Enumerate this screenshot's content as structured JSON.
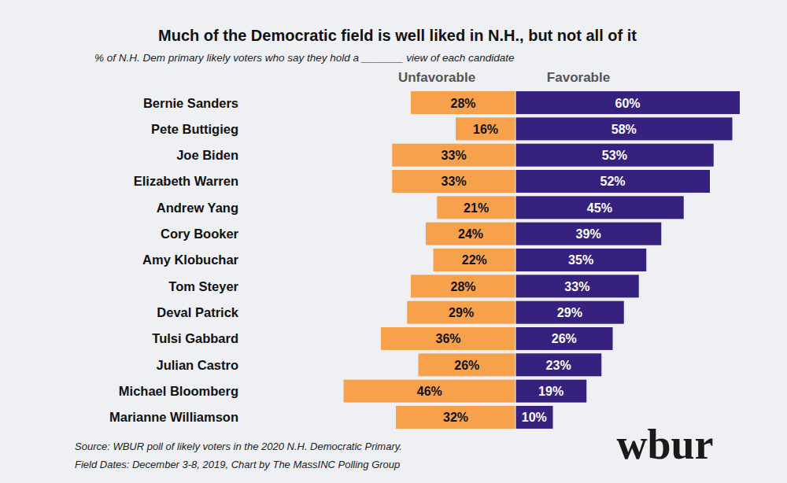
{
  "chart_data": {
    "type": "bar",
    "orientation": "horizontal",
    "title": "Much of the Democratic field is well liked in N.H., but not all of it",
    "subtitle": "% of N.H. Dem primary likely voters who say they hold a _______ view of each candidate",
    "categories": [
      "Bernie Sanders",
      "Pete Buttigieg",
      "Joe Biden",
      "Elizabeth Warren",
      "Andrew Yang",
      "Cory Booker",
      "Amy Klobuchar",
      "Tom Steyer",
      "Deval Patrick",
      "Tulsi Gabbard",
      "Julian Castro",
      "Michael Bloomberg",
      "Marianne Williamson"
    ],
    "series": [
      {
        "name": "Unfavorable",
        "color": "#f7a14c",
        "values": [
          28,
          16,
          33,
          33,
          21,
          24,
          22,
          28,
          29,
          36,
          26,
          46,
          32
        ],
        "value_labels": [
          "28%",
          "16%",
          "33%",
          "33%",
          "21%",
          "24%",
          "22%",
          "28%",
          "29%",
          "36%",
          "26%",
          "46%",
          "32%"
        ]
      },
      {
        "name": "Favorable",
        "color": "#36217f",
        "values": [
          60,
          58,
          53,
          52,
          45,
          39,
          35,
          33,
          29,
          26,
          23,
          19,
          10
        ],
        "value_labels": [
          "60%",
          "58%",
          "53%",
          "52%",
          "45%",
          "39%",
          "35%",
          "33%",
          "29%",
          "26%",
          "23%",
          "19%",
          "10%"
        ]
      }
    ],
    "xlim": [
      0,
      60
    ],
    "tick_labels": false,
    "data_labels": true,
    "annotations": [
      "Source: WBUR poll of likely voters in the 2020 N.H. Democratic Primary.",
      "Field Dates: December 3-8, 2019, Chart by The MassINC Polling Group",
      "wbur"
    ]
  }
}
